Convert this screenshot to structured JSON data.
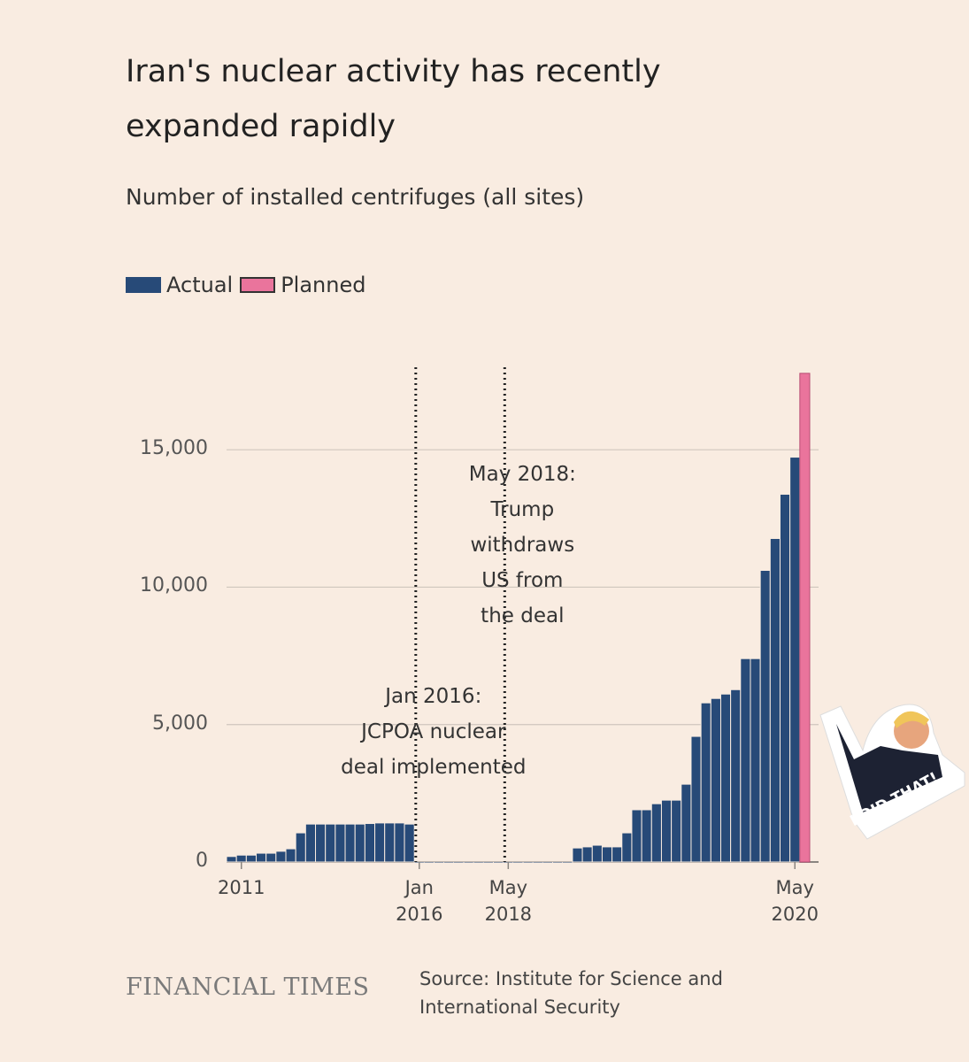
{
  "chart_data": {
    "type": "bar",
    "title": "Iran's nuclear activity has recently expanded rapidly",
    "subtitle": "Number of installed centrifuges (all sites)",
    "categories": [
      null,
      "2011",
      null,
      null,
      null,
      null,
      null,
      null,
      null,
      null,
      null,
      null,
      null,
      null,
      null,
      null,
      null,
      null,
      null,
      "Jan 2016",
      null,
      null,
      null,
      null,
      null,
      null,
      null,
      null,
      "May 2018",
      null,
      null,
      null,
      null,
      null,
      null,
      null,
      null,
      null,
      null,
      null,
      null,
      null,
      null,
      null,
      null,
      null,
      null,
      null,
      null,
      null,
      null,
      null,
      null,
      null,
      null,
      null,
      null,
      "May 2020",
      null
    ],
    "series": [
      {
        "name": "Actual",
        "color": "#274a78",
        "values": [
          200,
          250,
          250,
          320,
          320,
          390,
          480,
          1060,
          1380,
          1380,
          1380,
          1380,
          1380,
          1380,
          1400,
          1420,
          1420,
          1420,
          1380,
          0,
          0,
          0,
          0,
          0,
          0,
          0,
          0,
          0,
          0,
          0,
          0,
          0,
          0,
          0,
          0,
          510,
          550,
          610,
          550,
          550,
          1060,
          1900,
          1900,
          2120,
          2250,
          2250,
          2830,
          4570,
          5790,
          5950,
          6110,
          6270,
          7400,
          7400,
          10610,
          11770,
          13380,
          14730,
          null
        ]
      },
      {
        "name": "Planned",
        "color": "#ea749c",
        "values": [
          null,
          null,
          null,
          null,
          null,
          null,
          null,
          null,
          null,
          null,
          null,
          null,
          null,
          null,
          null,
          null,
          null,
          null,
          null,
          null,
          null,
          null,
          null,
          null,
          null,
          null,
          null,
          null,
          null,
          null,
          null,
          null,
          null,
          null,
          null,
          null,
          null,
          null,
          null,
          null,
          null,
          null,
          null,
          null,
          null,
          null,
          null,
          null,
          null,
          null,
          null,
          null,
          null,
          null,
          null,
          null,
          null,
          null,
          17780
        ]
      }
    ],
    "ylim": [
      0,
      18000
    ],
    "yticks": [
      0,
      {
        "value": 5000,
        "label": "5,000"
      },
      {
        "value": 10000,
        "label": "10,000"
      },
      {
        "value": 15000,
        "label": "15,000"
      }
    ],
    "grid": true,
    "annotations": [
      {
        "lines": [
          "Jan 2016:",
          "JCPOA nuclear",
          "deal implemented"
        ]
      },
      {
        "lines": [
          "May 2018:",
          "Trump",
          "withdraws",
          "US from",
          "the deal"
        ]
      }
    ],
    "brand": "FINANCIAL TIMES",
    "source": "Source: Institute for Science and International Security"
  },
  "sticker": {
    "text": "I DID THAT!"
  }
}
